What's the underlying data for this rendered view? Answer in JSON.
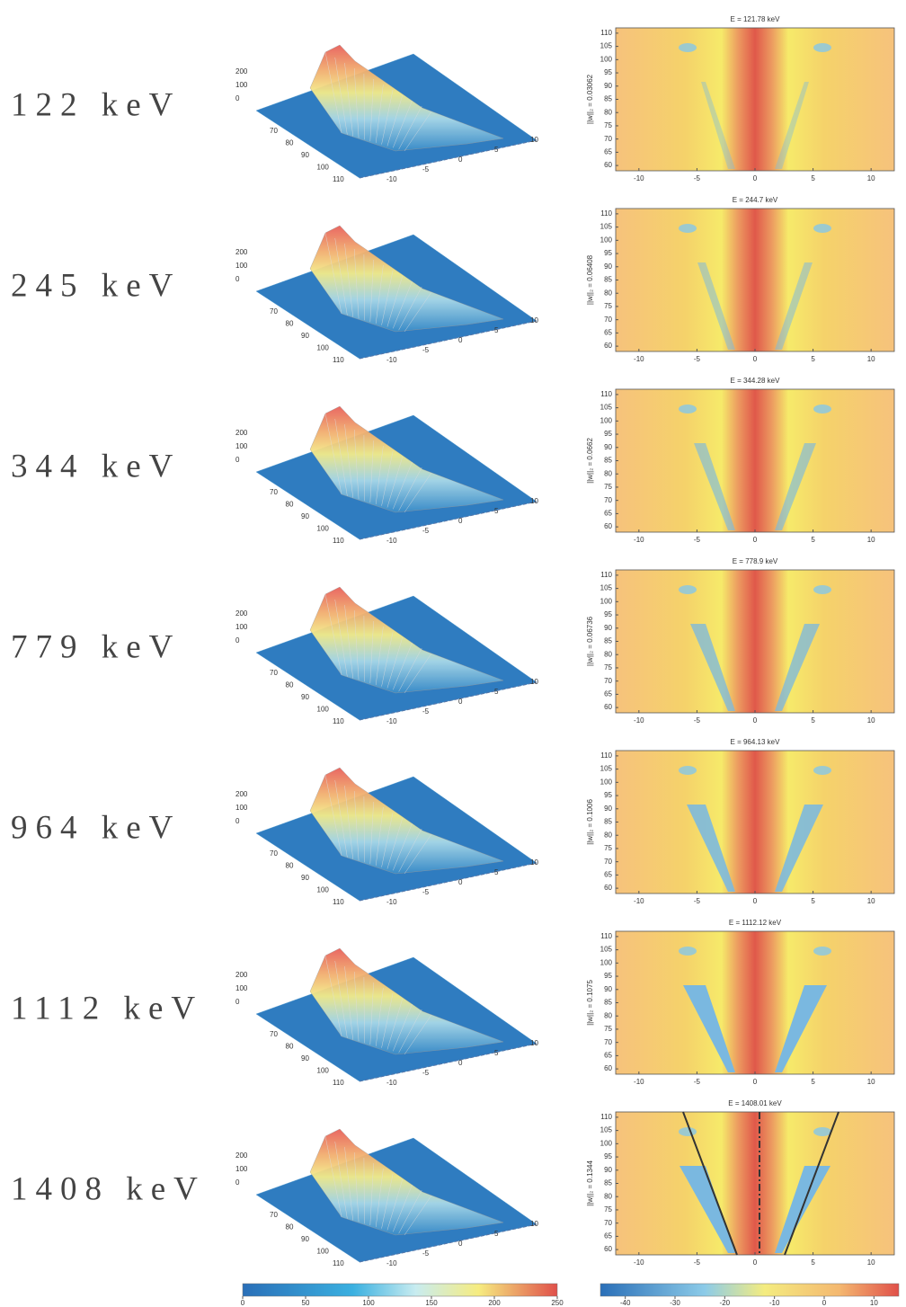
{
  "rows": [
    {
      "label": "122 keV",
      "title": "E = 121.78 keV",
      "ylabel": "||w||₂ = 0.03062"
    },
    {
      "label": "245 keV",
      "title": "E = 244.7 keV",
      "ylabel": "||w||₂ = 0.06408"
    },
    {
      "label": "344 keV",
      "title": "E = 344.28 keV",
      "ylabel": "||w||₂ = 0.0662"
    },
    {
      "label": "779 keV",
      "title": "E = 778.9 keV",
      "ylabel": "||w||₂ = 0.06736"
    },
    {
      "label": "964 keV",
      "title": "E = 964.13 keV",
      "ylabel": "||w||₂ = 0.1006"
    },
    {
      "label": "1112 keV",
      "title": "E = 1112.12 keV",
      "ylabel": "||w||₂ = 0.1075"
    },
    {
      "label": "1408 keV",
      "title": "E = 1408.01 keV",
      "ylabel": "||w||₂ = 0.1344"
    }
  ],
  "surface_axes": {
    "zticks": [
      200,
      100,
      0
    ],
    "yticks": [
      70,
      80,
      90,
      100,
      110
    ],
    "xticks": [
      -10,
      -5,
      0,
      5,
      10
    ]
  },
  "heatmap_axes": {
    "xlim": [
      -12,
      12
    ],
    "ylim": [
      58,
      112
    ],
    "xticks": [
      -10,
      -5,
      0,
      5,
      10
    ],
    "yticks": [
      60,
      65,
      70,
      75,
      80,
      85,
      90,
      95,
      100,
      105,
      110
    ]
  },
  "colorbars": [
    {
      "lim": [
        0,
        250
      ],
      "ticks": [
        0,
        50,
        100,
        150,
        200,
        250
      ]
    },
    {
      "lim": [
        -45,
        15
      ],
      "ticks": [
        -40,
        -30,
        -20,
        -10,
        0,
        10
      ]
    }
  ]
}
